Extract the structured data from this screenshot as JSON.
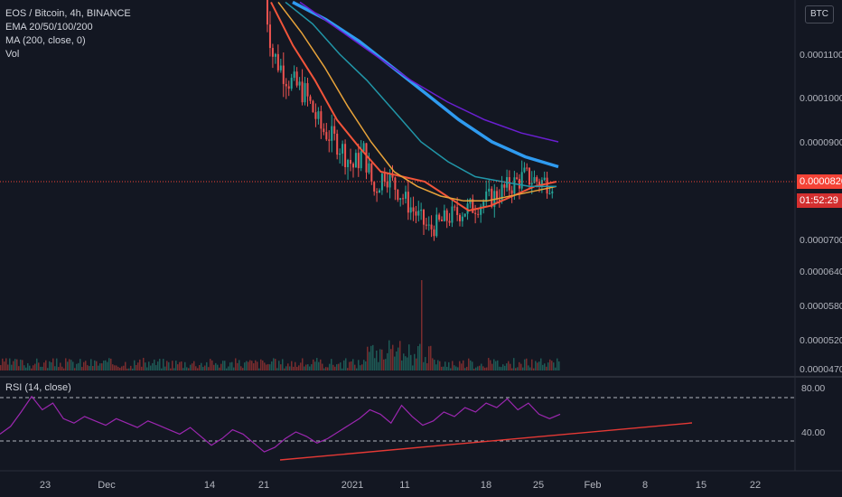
{
  "legend": {
    "title": "EOS / Bitcoin, 4h, BINANCE",
    "ema": "EMA 20/50/100/200",
    "ma": "MA (200, close, 0)",
    "vol": "Vol"
  },
  "rsi_legend": "RSI (14, close)",
  "currency_badge": "BTC",
  "last_price_tag": "0.0000820",
  "countdown_tag": "01:52:29",
  "colors": {
    "background": "#131722",
    "up": "#26a69a",
    "down": "#ef5350",
    "ema20": "#f2543a",
    "ema50": "#e8a33a",
    "ema100": "#2196a8",
    "ema200": "#2f9bf0",
    "ma200": "#6a1fd1",
    "rsi": "#9c27b0",
    "trendline": "#e53935",
    "price_line": "#f44336"
  },
  "chart_data": [
    {
      "type": "candlestick",
      "title": "EOS / Bitcoin, 4h, BINANCE",
      "ylim": [
        4.7e-05,
        0.000122
      ],
      "ytick_labels": [
        "0.0001100",
        "0.0001000",
        "0.0000900",
        "0.0000820",
        "0.0000700",
        "0.0000640",
        "0.0000580",
        "0.0000520",
        "0.0000470"
      ],
      "ytick_values": [
        0.00011,
        0.0001,
        9e-05,
        8.2e-05,
        7e-05,
        6.4e-05,
        5.8e-05,
        5.2e-05,
        4.7e-05
      ],
      "xtick_labels": [
        "23",
        "Dec",
        "14",
        "21",
        "2021",
        "11",
        "18",
        "25",
        "Feb",
        "8",
        "15",
        "22"
      ],
      "price_path": [
        {
          "x": "Dec 21",
          "close": 0.000123
        },
        {
          "x": "Dec 22",
          "close": 0.00011
        },
        {
          "x": "Dec 24",
          "close": 0.000104
        },
        {
          "x": "Dec 26",
          "close": 0.000101
        },
        {
          "x": "Dec 28",
          "close": 9.3e-05
        },
        {
          "x": "Dec 30",
          "close": 9e-05
        },
        {
          "x": "Jan 1",
          "close": 8.5e-05
        },
        {
          "x": "Jan 3",
          "close": 8.8e-05
        },
        {
          "x": "Jan 5",
          "close": 8e-05
        },
        {
          "x": "Jan 7",
          "close": 8.4e-05
        },
        {
          "x": "Jan 9",
          "close": 8.1e-05
        },
        {
          "x": "Jan 11",
          "close": 7.8e-05
        },
        {
          "x": "Jan 13",
          "close": 7.2e-05
        },
        {
          "x": "Jan 15",
          "close": 7.5e-05
        },
        {
          "x": "Jan 17",
          "close": 7.7e-05
        },
        {
          "x": "Jan 19",
          "close": 7.9e-05
        },
        {
          "x": "Jan 21",
          "close": 8.1e-05
        },
        {
          "x": "Jan 23",
          "close": 8.3e-05
        },
        {
          "x": "Jan 25",
          "close": 8.2e-05
        },
        {
          "x": "Jan 27",
          "close": 8.2e-05
        }
      ],
      "last_price": 8.2e-05,
      "series": [
        {
          "name": "EMA 20",
          "values": [
            0.000122,
            0.000112,
            0.000104,
            9.5e-05,
            8.9e-05,
            8.4e-05,
            8.3e-05,
            8.2e-05,
            7.9e-05,
            7.6e-05,
            7.7e-05,
            7.9e-05,
            8.1e-05,
            8.2e-05
          ]
        },
        {
          "name": "EMA 50",
          "values": [
            0.000122,
            0.000115,
            0.000107,
            9.8e-05,
            9e-05,
            8.4e-05,
            8.1e-05,
            7.9e-05,
            7.8e-05,
            7.8e-05,
            7.9e-05,
            8e-05,
            8.1e-05
          ]
        },
        {
          "name": "EMA 100",
          "values": [
            0.000122,
            0.000117,
            0.00011,
            0.000104,
            9.7e-05,
            9e-05,
            8.6e-05,
            8.3e-05,
            8.2e-05,
            8.1e-05,
            8.1e-05
          ]
        },
        {
          "name": "EMA 200",
          "values": [
            0.000122,
            0.000118,
            0.000113,
            0.000107,
            0.000101,
            9.5e-05,
            9e-05,
            8.7e-05,
            8.5e-05
          ]
        },
        {
          "name": "MA 200",
          "values": [
            0.000122,
            0.000116,
            0.00011,
            0.000104,
            9.9e-05,
            9.5e-05,
            9.2e-05,
            9e-05
          ]
        }
      ],
      "grid": false,
      "legend_position": "top-left"
    },
    {
      "type": "line",
      "title": "RSI (14, close)",
      "ylim": [
        20,
        90
      ],
      "ytick_labels": [
        "80.00",
        "40.00"
      ],
      "ytick_values": [
        80,
        40
      ],
      "band_lines": [
        70,
        30
      ],
      "rsi_values": [
        38,
        45,
        58,
        72,
        60,
        66,
        52,
        48,
        54,
        50,
        46,
        52,
        48,
        44,
        50,
        46,
        42,
        38,
        44,
        36,
        28,
        34,
        42,
        38,
        30,
        22,
        26,
        34,
        40,
        36,
        30,
        34,
        40,
        46,
        52,
        60,
        56,
        48,
        64,
        54,
        46,
        50,
        58,
        54,
        62,
        58,
        66,
        62,
        70,
        60,
        66,
        56,
        52,
        56
      ],
      "trendline": {
        "from": "Dec 21",
        "to": "Feb 14",
        "start_value": 22,
        "end_value": 45
      }
    }
  ]
}
